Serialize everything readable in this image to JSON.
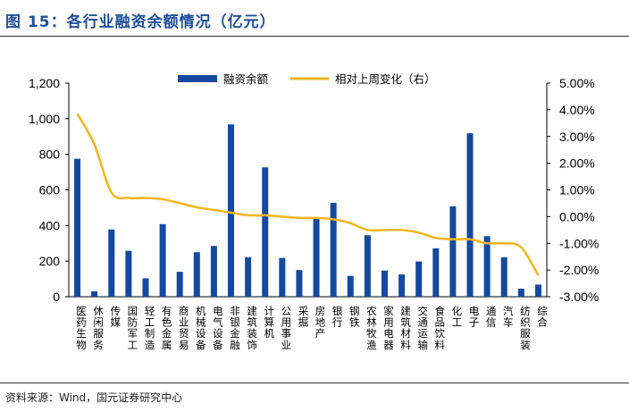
{
  "figure": {
    "title": "图 15：各行业融资余额情况（亿元）",
    "source": "资料来源：Wind，国元证券研究中心"
  },
  "colors": {
    "bar": "#1449a0",
    "line": "#f5b51b",
    "title": "#1f4e9a"
  },
  "chart_data": {
    "type": "bar",
    "categories": [
      "医药生物",
      "休闲服务",
      "传媒",
      "国防军工",
      "轻工制造",
      "有色金属",
      "商业贸易",
      "机械设备",
      "电气设备",
      "非银金融",
      "建筑装饰",
      "计算机",
      "公用事业",
      "采掘",
      "房地产",
      "银行",
      "钢铁",
      "农林牧渔",
      "家用电器",
      "建筑材料",
      "交通运输",
      "食品饮料",
      "化工",
      "电子",
      "通信",
      "汽车",
      "纺织服装",
      "综合"
    ],
    "series": [
      {
        "name": "融资余额",
        "type": "bar",
        "axis": "left",
        "values": [
          775,
          30,
          378,
          258,
          103,
          408,
          140,
          250,
          285,
          968,
          222,
          727,
          218,
          150,
          443,
          527,
          117,
          345,
          147,
          125,
          198,
          272,
          508,
          918,
          340,
          222,
          45,
          68
        ]
      },
      {
        "name": "相对上周变化（右）",
        "type": "line",
        "axis": "right",
        "values": [
          3.85,
          2.7,
          0.9,
          0.7,
          0.7,
          0.65,
          0.5,
          0.35,
          0.25,
          0.15,
          0.05,
          0.05,
          0.0,
          -0.05,
          -0.05,
          -0.1,
          -0.25,
          -0.5,
          -0.5,
          -0.5,
          -0.6,
          -0.8,
          -0.85,
          -0.85,
          -1.0,
          -1.0,
          -1.15,
          -2.2
        ]
      }
    ],
    "y_left": {
      "min": 0,
      "max": 1200,
      "ticks": [
        "0",
        "200",
        "400",
        "600",
        "800",
        "1,000",
        "1,200"
      ]
    },
    "y_right": {
      "min": -3,
      "max": 5,
      "ticks": [
        "-3.00%",
        "-2.00%",
        "-1.00%",
        "0.00%",
        "1.00%",
        "2.00%",
        "3.00%",
        "4.00%",
        "5.00%"
      ]
    },
    "legend_position": "top-center",
    "grid": false
  }
}
